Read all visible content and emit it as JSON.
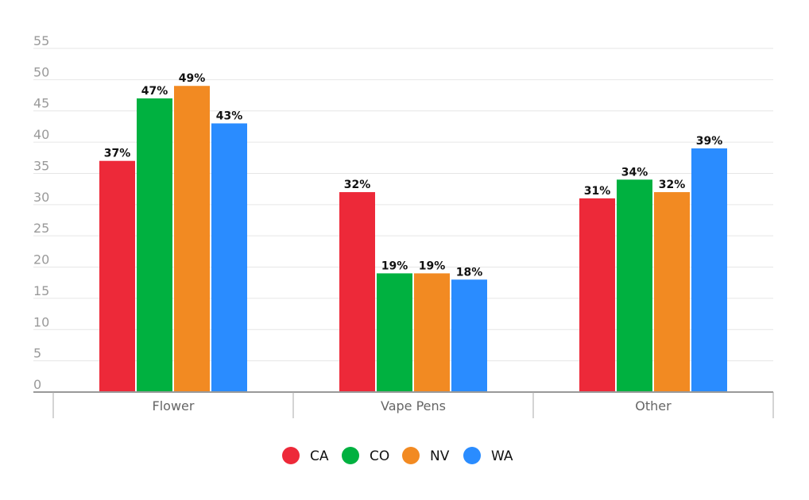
{
  "chart_data": {
    "type": "bar",
    "title": "",
    "xlabel": "",
    "ylabel": "",
    "ylim": [
      0,
      55
    ],
    "yticks": [
      0,
      5,
      10,
      15,
      20,
      25,
      30,
      35,
      40,
      45,
      50,
      55
    ],
    "grid": true,
    "legend_position": "bottom-center",
    "categories": [
      "Flower",
      "Vape Pens",
      "Other"
    ],
    "series": [
      {
        "name": "CA",
        "color": "#ED2939",
        "values": [
          37,
          32,
          31
        ],
        "labels": [
          "37%",
          "32%",
          "31%"
        ]
      },
      {
        "name": "CO",
        "color": "#00B140",
        "values": [
          47,
          19,
          34
        ],
        "labels": [
          "47%",
          "19%",
          "34%"
        ]
      },
      {
        "name": "NV",
        "color": "#F28A22",
        "values": [
          49,
          19,
          32
        ],
        "labels": [
          "49%",
          "19%",
          "32%"
        ]
      },
      {
        "name": "WA",
        "color": "#2A8CFF",
        "values": [
          43,
          18,
          39
        ],
        "labels": [
          "43%",
          "18%",
          "39%"
        ]
      }
    ]
  }
}
